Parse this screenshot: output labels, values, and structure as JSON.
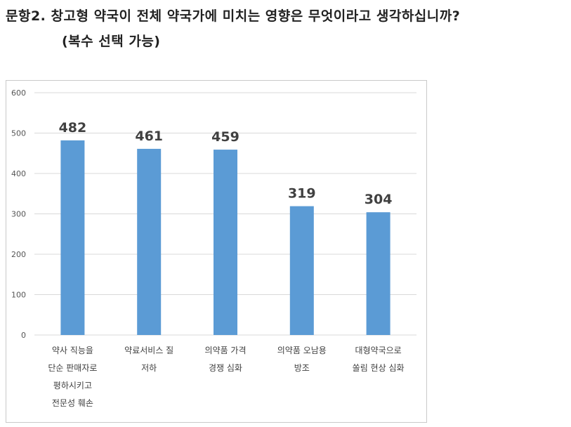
{
  "question": {
    "title": "문항2. 창고형 약국이 전체 약국가에 미치는 영향은 무엇이라고 생각하십니까?",
    "subtitle": "(복수 선택 가능)"
  },
  "chart_data": {
    "type": "bar",
    "categories": [
      [
        "약사 직능을",
        "단순 판매자로",
        "평하시키고",
        "전문성 훼손"
      ],
      [
        "약료서비스 질",
        "저하"
      ],
      [
        "의약품 가격",
        "경쟁 심화"
      ],
      [
        "의약품 오남용",
        "방조"
      ],
      [
        "대형약국으로",
        "쏠림 현상 심화"
      ]
    ],
    "values": [
      482,
      461,
      459,
      319,
      304
    ],
    "data_labels": [
      "482",
      "461",
      "459",
      "319",
      "304"
    ],
    "ylim": [
      0,
      600
    ],
    "yticks": [
      0,
      100,
      200,
      300,
      400,
      500,
      600
    ],
    "grid": true,
    "bar_color": "#5b9bd5",
    "grid_color": "#d9d9d9"
  }
}
